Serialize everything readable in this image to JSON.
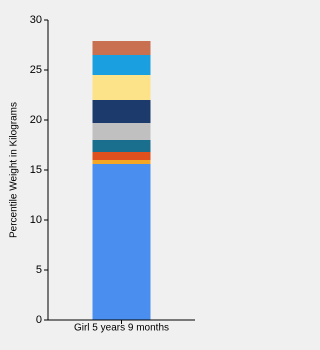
{
  "chart_data": {
    "type": "stacked-bar",
    "y_label": "Percentile Weight in Kilograms",
    "categories": [
      "Girl 5 years 9 months"
    ],
    "series": [
      {
        "color": "#4a8ff0",
        "values": [
          15.6
        ]
      },
      {
        "color": "#f5a623",
        "values": [
          0.4
        ]
      },
      {
        "color": "#e0501e",
        "values": [
          0.8
        ]
      },
      {
        "color": "#1a6e8e",
        "values": [
          1.2
        ]
      },
      {
        "color": "#c0c0c0",
        "values": [
          1.7
        ]
      },
      {
        "color": "#1c3a6b",
        "values": [
          2.3
        ]
      },
      {
        "color": "#fce38a",
        "values": [
          2.5
        ]
      },
      {
        "color": "#1a9fe0",
        "values": [
          2.0
        ]
      },
      {
        "color": "#c87050",
        "values": [
          1.4
        ]
      }
    ],
    "ylim": [
      0,
      30
    ],
    "yticks": [
      0,
      5,
      10,
      15,
      20,
      25,
      30
    ]
  }
}
